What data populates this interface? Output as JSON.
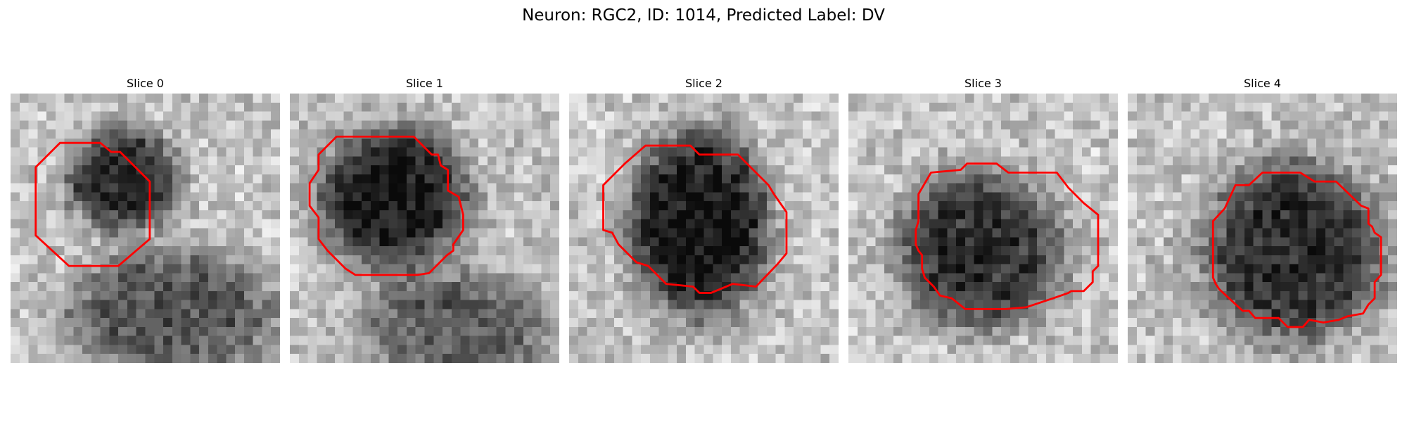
{
  "figure": {
    "title": "Neuron: RGC2, ID: 1014, Predicted Label: DV"
  },
  "colors": {
    "contour": "#ff0000",
    "background": "#ffffff"
  },
  "panels": [
    {
      "title": "Slice 0"
    },
    {
      "title": "Slice 1"
    },
    {
      "title": "Slice 2"
    },
    {
      "title": "Slice 3"
    },
    {
      "title": "Slice 4"
    }
  ]
}
